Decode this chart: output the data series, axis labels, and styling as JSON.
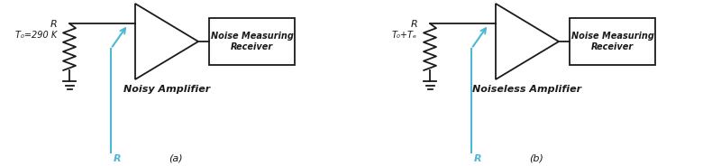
{
  "fig_width": 8.0,
  "fig_height": 1.84,
  "dpi": 100,
  "bg_color": "#ffffff",
  "line_color": "#1a1a1a",
  "blue_color": "#4db8d4",
  "diagram_a": {
    "label": "(a)",
    "resistor_label_top": "R",
    "resistor_label_side": "T₀=290 K",
    "bottom_r_label": "R",
    "amplifier_label": "Noisy Amplifier",
    "receiver_label": "Noise Measuring\nReceiver"
  },
  "diagram_b": {
    "label": "(b)",
    "resistor_label_top": "R",
    "resistor_label_side": "T₀+Tₑ",
    "bottom_r_label": "R",
    "amplifier_label": "Noiseless Amplifier",
    "receiver_label": "Noise Measuring\nReceiver"
  }
}
